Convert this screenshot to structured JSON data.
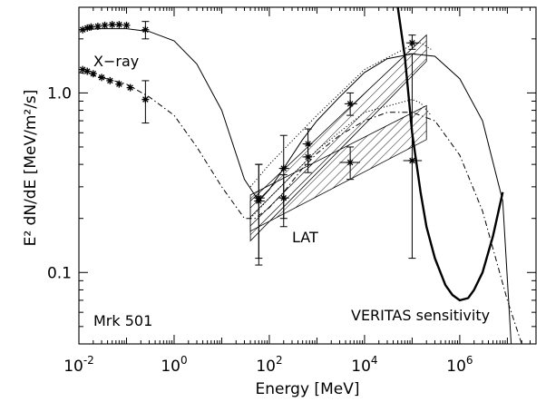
{
  "chart_data": {
    "type": "line",
    "source_name": "Mrk 501",
    "xlabel": "Energy [MeV]",
    "ylabel": "E² dN/dE [MeV/m²/s]",
    "xscale": "log",
    "yscale": "log",
    "xlim": [
      0.01,
      40000000
    ],
    "ylim": [
      0.04,
      3.0
    ],
    "x_ticks": [
      {
        "value": 0.01,
        "label_base": "10",
        "label_exp": "-2"
      },
      {
        "value": 1,
        "label_base": "10",
        "label_exp": "0"
      },
      {
        "value": 100,
        "label_base": "10",
        "label_exp": "2"
      },
      {
        "value": 10000,
        "label_base": "10",
        "label_exp": "4"
      },
      {
        "value": 1000000,
        "label_base": "10",
        "label_exp": "6"
      }
    ],
    "y_ticks": [
      {
        "value": 1.0,
        "label": "1.0"
      },
      {
        "value": 0.1,
        "label": "0.1"
      }
    ],
    "annotations": {
      "xray": "X−ray",
      "lat": "LAT",
      "veritas": "VERITAS sensitivity",
      "source": "Mrk 501"
    },
    "series": [
      {
        "style": "solid",
        "x": [
          0.01,
          0.03,
          0.1,
          0.3,
          1,
          3,
          10,
          30,
          60,
          100,
          200,
          500,
          1000,
          3000,
          10000,
          30000,
          100000,
          300000,
          1000000,
          3000000,
          8000000,
          12000000
        ],
        "y": [
          2.25,
          2.28,
          2.28,
          2.2,
          1.95,
          1.45,
          0.8,
          0.33,
          0.25,
          0.29,
          0.38,
          0.55,
          0.7,
          0.95,
          1.3,
          1.55,
          1.65,
          1.6,
          1.2,
          0.7,
          0.25,
          0.04
        ]
      },
      {
        "style": "dash-dot",
        "x": [
          0.01,
          0.03,
          0.1,
          0.3,
          1,
          3,
          10,
          30,
          50,
          100,
          200,
          500,
          1000,
          3000,
          10000,
          30000,
          100000,
          300000,
          1000000,
          3000000,
          10000000,
          20000000
        ],
        "y": [
          1.3,
          1.22,
          1.12,
          0.95,
          0.75,
          0.5,
          0.3,
          0.2,
          0.2,
          0.23,
          0.28,
          0.38,
          0.46,
          0.58,
          0.7,
          0.78,
          0.78,
          0.7,
          0.45,
          0.22,
          0.07,
          0.04
        ]
      },
      {
        "style": "veritas",
        "x": [
          50000,
          70000,
          100000,
          150000,
          200000,
          300000,
          500000,
          700000,
          1000000,
          1500000,
          2000000,
          3000000,
          5000000,
          8000000
        ],
        "y": [
          3.0,
          1.6,
          0.6,
          0.28,
          0.18,
          0.12,
          0.085,
          0.075,
          0.07,
          0.072,
          0.08,
          0.1,
          0.16,
          0.28
        ]
      },
      {
        "style": "points",
        "points": [
          {
            "x": 0.012,
            "y": 2.25
          },
          {
            "x": 0.015,
            "y": 2.3
          },
          {
            "x": 0.018,
            "y": 2.33
          },
          {
            "x": 0.025,
            "y": 2.35
          },
          {
            "x": 0.035,
            "y": 2.38
          },
          {
            "x": 0.05,
            "y": 2.4
          },
          {
            "x": 0.07,
            "y": 2.4
          },
          {
            "x": 0.1,
            "y": 2.38
          },
          {
            "x": 0.25,
            "y": 2.25,
            "ylo": 2.0,
            "yhi": 2.5
          }
        ]
      },
      {
        "style": "points",
        "points": [
          {
            "x": 0.012,
            "y": 1.35
          },
          {
            "x": 0.015,
            "y": 1.32
          },
          {
            "x": 0.02,
            "y": 1.28
          },
          {
            "x": 0.03,
            "y": 1.22
          },
          {
            "x": 0.045,
            "y": 1.17
          },
          {
            "x": 0.07,
            "y": 1.12
          },
          {
            "x": 0.12,
            "y": 1.07
          },
          {
            "x": 0.25,
            "y": 0.92,
            "ylo": 0.68,
            "yhi": 1.17
          }
        ]
      },
      {
        "style": "points",
        "points": [
          {
            "x": 60,
            "y": 0.26,
            "xlo": 48,
            "xhi": 80,
            "ylo": 0.12,
            "yhi": 0.4
          },
          {
            "x": 200,
            "y": 0.38,
            "xlo": 160,
            "xhi": 260,
            "ylo": 0.2,
            "yhi": 0.58
          },
          {
            "x": 650,
            "y": 0.52,
            "xlo": 500,
            "xhi": 800,
            "ylo": 0.4,
            "yhi": 0.63
          },
          {
            "x": 5000,
            "y": 0.87,
            "xlo": 3800,
            "xhi": 7000,
            "ylo": 0.75,
            "yhi": 1.0
          },
          {
            "x": 100000,
            "y": 1.9,
            "xlo": 75000,
            "xhi": 140000,
            "ylo": 1.75,
            "yhi": 2.1
          }
        ]
      },
      {
        "style": "points",
        "points": [
          {
            "x": 60,
            "y": 0.25,
            "xlo": 48,
            "xhi": 80,
            "ylo": 0.11,
            "yhi": 0.4
          },
          {
            "x": 200,
            "y": 0.26,
            "xlo": 160,
            "xhi": 260,
            "ylo": 0.18,
            "yhi": 0.35
          },
          {
            "x": 650,
            "y": 0.44,
            "xlo": 500,
            "xhi": 800,
            "ylo": 0.36,
            "yhi": 0.52
          },
          {
            "x": 5000,
            "y": 0.41,
            "xlo": 3000,
            "xhi": 8000,
            "ylo": 0.33,
            "yhi": 0.5
          },
          {
            "x": 100000,
            "y": 0.42,
            "xlo": 65000,
            "xhi": 160000,
            "ylo": 0.12,
            "yhi": 1.65
          }
        ]
      },
      {
        "style": "band",
        "x": [
          40,
          200000
        ],
        "y_lo": [
          0.15,
          1.5
        ],
        "y_hi": [
          0.25,
          2.1
        ]
      },
      {
        "style": "band",
        "x": [
          40,
          200000
        ],
        "y_lo": [
          0.17,
          0.55
        ],
        "y_hi": [
          0.27,
          0.85
        ]
      },
      {
        "style": "dotted",
        "x": [
          40,
          100,
          1000,
          10000,
          100000,
          150000,
          250000
        ],
        "y": [
          0.3,
          0.4,
          0.75,
          1.35,
          1.85,
          1.9,
          1.75
        ]
      },
      {
        "style": "dotted",
        "x": [
          40,
          100,
          1000,
          10000,
          100000,
          150000,
          250000
        ],
        "y": [
          0.2,
          0.26,
          0.48,
          0.78,
          0.92,
          0.88,
          0.75
        ]
      }
    ]
  }
}
